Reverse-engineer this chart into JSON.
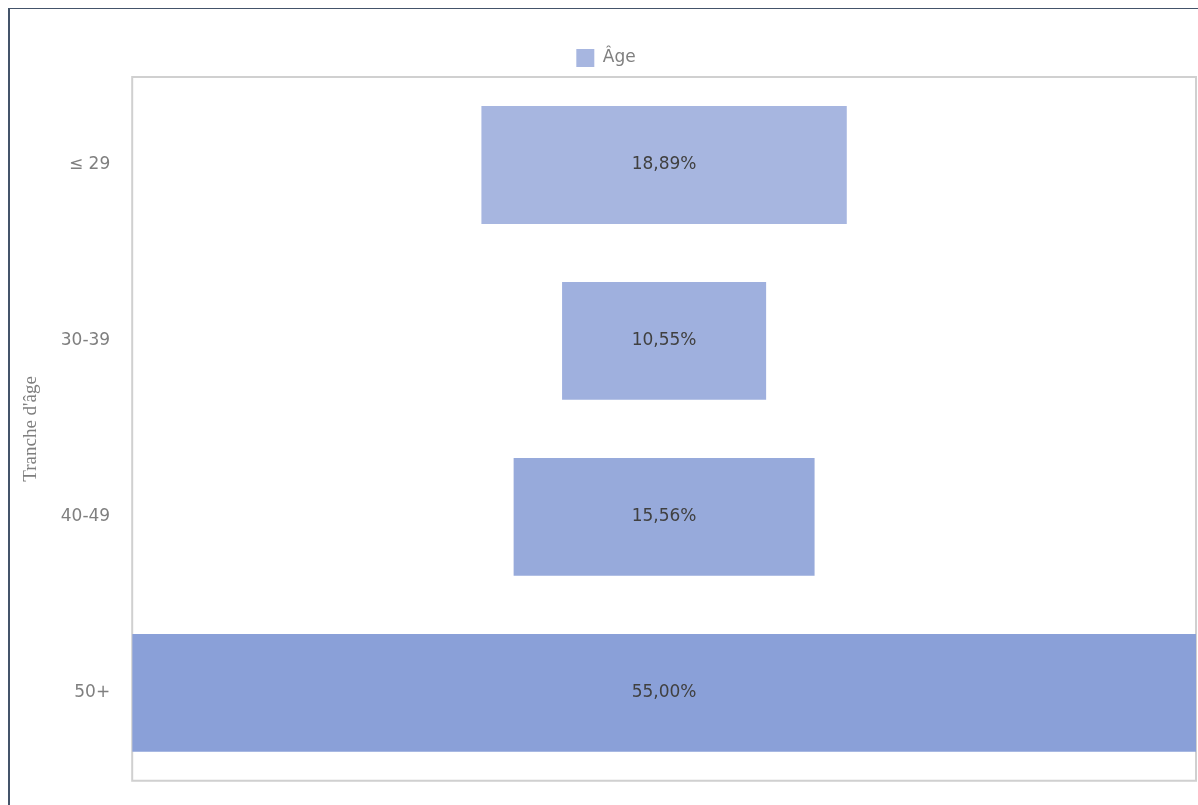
{
  "chart_data": {
    "type": "other",
    "ylabel": "Tranche d'âge",
    "legend": "top",
    "categories": [
      "≤ 29",
      "30-39",
      "40-49",
      "50+"
    ],
    "series": [
      {
        "name": "Âge",
        "colors": [
          "#a7b6e0",
          "#9fb0de",
          "#97aadb",
          "#8aa0d8"
        ],
        "values": [
          18.89,
          10.55,
          15.56,
          55.0
        ],
        "value_labels": [
          "18,89%",
          "10,55%",
          "15,56%",
          "55,00%"
        ]
      }
    ]
  }
}
